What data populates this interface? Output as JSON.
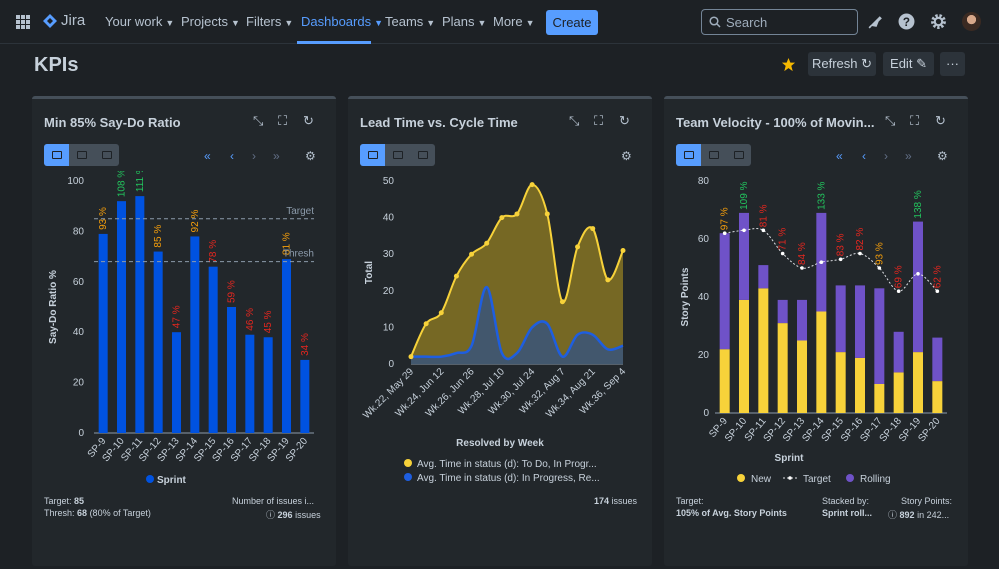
{
  "nav": {
    "logo": "Jira",
    "items": [
      "Your work",
      "Projects",
      "Filters",
      "Dashboards",
      "Teams",
      "Plans",
      "More"
    ],
    "create": "Create",
    "search_placeholder": "Search"
  },
  "page": {
    "title": "KPIs",
    "refresh": "Refresh",
    "edit": "Edit"
  },
  "g1": {
    "title": "Min 85% Say-Do Ratio",
    "ylabel": "Say-Do Ratio %",
    "target_label": "Target",
    "thresh_label": "Thresh",
    "legend": "Sprint",
    "foot_target_label": "Target:",
    "foot_target": "85",
    "foot_thresh_label": "Thresh:",
    "foot_thresh": "68",
    "foot_thresh_note": "(80% of Target)",
    "foot_issues_label": "Number of issues i...",
    "foot_issues": "296",
    "foot_issues_suffix": "issues"
  },
  "g2": {
    "title": "Lead Time vs. Cycle Time",
    "ylabel": "Total",
    "xlabel": "Resolved by Week",
    "legend1": "Avg. Time in status (d): To Do, In Progr...",
    "legend2": "Avg. Time in status (d): In Progress, Re...",
    "foot_issues": "174",
    "foot_issues_suffix": "issues"
  },
  "g3": {
    "title": "Team Velocity - 100% of Movin...",
    "ylabel": "Story Points",
    "xlabel": "Sprint",
    "legend_new": "New",
    "legend_target": "Target",
    "legend_rolling": "Rolling",
    "foot1_label": "Target:",
    "foot1_value": "105% of Avg. Story Points",
    "foot2_label": "Stacked by:",
    "foot2_value": "Sprint roll...",
    "foot3_label": "Story Points:",
    "foot3_value": "892",
    "foot3_suffix": "in 242..."
  },
  "colors": {
    "blue": "#0052e0",
    "yellow": "#f7d23a",
    "purple": "#6f52c8",
    "green": "#22c55e",
    "orange": "#f59e0b",
    "red": "#e5271f"
  },
  "chart_data": [
    {
      "type": "bar",
      "title": "Min 85% Say-Do Ratio",
      "ylabel": "Say-Do Ratio %",
      "ylim": [
        0,
        100
      ],
      "yticks": [
        0,
        20,
        40,
        60,
        80,
        100
      ],
      "categories": [
        "SP-9",
        "SP-10",
        "SP-11",
        "SP-12",
        "SP-13",
        "SP-14",
        "SP-15",
        "SP-16",
        "SP-17",
        "SP-18",
        "SP-19",
        "SP-20"
      ],
      "values": [
        79,
        92,
        94,
        72,
        40,
        78,
        66,
        50,
        39,
        38,
        69,
        29
      ],
      "labels": [
        "93 %",
        "108 %",
        "111 %",
        "85 %",
        "47 %",
        "92 %",
        "78 %",
        "59 %",
        "46 %",
        "45 %",
        "81 %",
        "34 %"
      ],
      "label_colors": [
        "orange",
        "green",
        "green",
        "orange",
        "red",
        "orange",
        "red",
        "red",
        "red",
        "red",
        "orange",
        "red"
      ],
      "target": 85,
      "thresh": 68
    },
    {
      "type": "area",
      "title": "Lead Time vs. Cycle Time",
      "ylabel": "Total",
      "xlabel": "Resolved by Week",
      "ylim": [
        0,
        50
      ],
      "yticks": [
        0,
        10,
        20,
        30,
        40,
        50
      ],
      "xticklabels": [
        "Wk.22, May 29",
        "Wk.24, Jun 12",
        "Wk.26, Jun 26",
        "Wk.28, Jul 10",
        "Wk.30, Jul 24",
        "Wk.32, Aug 7",
        "Wk.34, Aug 21",
        "Wk.36, Sep 4"
      ],
      "series": [
        {
          "name": "Avg. Time in status (d): To Do, In Progr...",
          "values": [
            2,
            11,
            14,
            24,
            30,
            33,
            40,
            41,
            49,
            41,
            17,
            32,
            37,
            23,
            31
          ]
        },
        {
          "name": "Avg. Time in status (d): In Progress, Re...",
          "values": [
            2,
            2,
            2,
            3,
            5,
            21,
            3,
            3,
            10,
            11,
            2,
            8,
            8,
            4,
            5
          ]
        }
      ]
    },
    {
      "type": "bar",
      "title": "Team Velocity - 100% of Movin...",
      "ylabel": "Story Points",
      "xlabel": "Sprint",
      "ylim": [
        0,
        80
      ],
      "yticks": [
        0,
        20,
        40,
        60,
        80
      ],
      "categories": [
        "SP-9",
        "SP-10",
        "SP-11",
        "SP-12",
        "SP-13",
        "SP-14",
        "SP-15",
        "SP-16",
        "SP-17",
        "SP-18",
        "SP-19",
        "SP-20"
      ],
      "series": [
        {
          "name": "New",
          "values": [
            22,
            39,
            43,
            31,
            25,
            35,
            21,
            19,
            10,
            14,
            21,
            11
          ]
        },
        {
          "name": "Rolling",
          "values": [
            40,
            30,
            8,
            8,
            14,
            34,
            23,
            25,
            33,
            14,
            45,
            15
          ]
        },
        {
          "name": "Target",
          "values": [
            62,
            63,
            63,
            55,
            50,
            52,
            53,
            55,
            50,
            42,
            48,
            42
          ]
        }
      ],
      "labels": [
        "97 %",
        "109 %",
        "81 %",
        "71 %",
        "84 %",
        "133 %",
        "83 %",
        "82 %",
        "93 %",
        "69 %",
        "138 %",
        "62 %"
      ],
      "label_colors": [
        "orange",
        "green",
        "red",
        "red",
        "red",
        "green",
        "red",
        "red",
        "orange",
        "red",
        "green",
        "red"
      ]
    }
  ]
}
